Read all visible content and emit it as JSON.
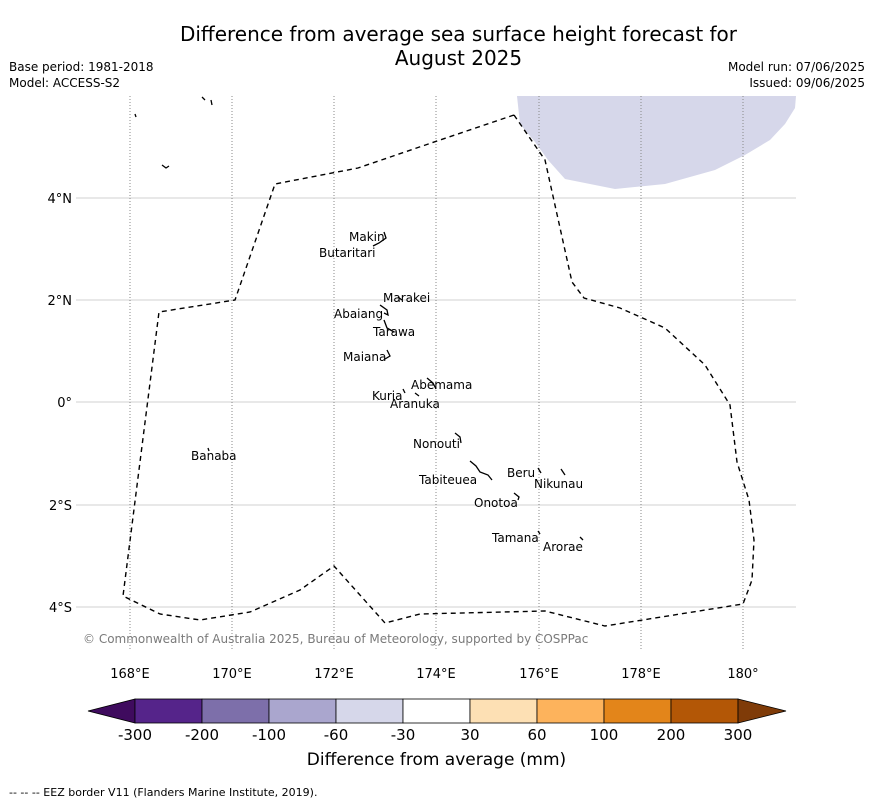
{
  "title_line1": "Difference from average sea surface height forecast for",
  "title_line2": "August 2025",
  "base_period": "Base period: 1981-2018",
  "model": "Model: ACCESS-S2",
  "model_run": "Model run: 07/06/2025",
  "issued": "Issued: 09/06/2025",
  "copyright": "© Commonwealth of Australia 2025, Bureau of Meteorology, supported by COSPPac",
  "colorbar_label": "Difference from average (mm)",
  "eez_note": "--  --  -- EEZ border V11 (Flanders Marine Institute, 2019).",
  "map": {
    "lon_ticks": [
      "168°E",
      "170°E",
      "172°E",
      "174°E",
      "176°E",
      "178°E",
      "180°"
    ],
    "lat_ticks": [
      "4°N",
      "2°N",
      "0°",
      "2°S",
      "4°S"
    ],
    "islands": [
      {
        "name": "Makin"
      },
      {
        "name": "Butaritari"
      },
      {
        "name": "Marakei"
      },
      {
        "name": "Abaiang"
      },
      {
        "name": "Tarawa"
      },
      {
        "name": "Maiana"
      },
      {
        "name": "Abemama"
      },
      {
        "name": "Kuria"
      },
      {
        "name": "Aranuka"
      },
      {
        "name": "Nonouti"
      },
      {
        "name": "Banaba"
      },
      {
        "name": "Beru"
      },
      {
        "name": "Nikunau"
      },
      {
        "name": "Tabiteuea"
      },
      {
        "name": "Onotoa"
      },
      {
        "name": "Tamana"
      },
      {
        "name": "Arorae"
      }
    ]
  },
  "colorbar": {
    "ticks": [
      "-300",
      "-200",
      "-100",
      "-60",
      "-30",
      "30",
      "60",
      "100",
      "200",
      "300"
    ],
    "colors": [
      "#3f0b5e",
      "#55248a",
      "#7d6faa",
      "#aaa6ce",
      "#d6d7ea",
      "#ffffff",
      "#fde0b4",
      "#fdb35c",
      "#e3851a",
      "#b35706",
      "#7f3b08"
    ]
  }
}
